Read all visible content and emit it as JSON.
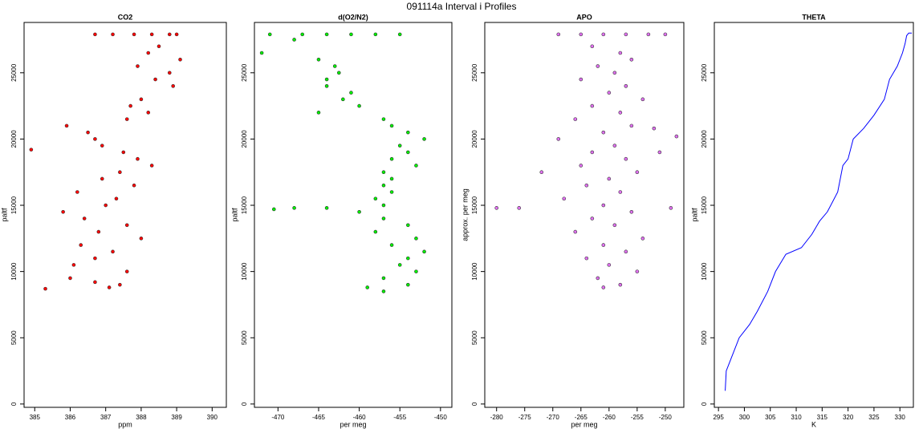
{
  "title": "091114a   Interval i Profiles",
  "chart_data": [
    {
      "type": "scatter",
      "title": "CO2",
      "xlabel": "ppm",
      "ylabel": "paltf",
      "color": "#ff0000",
      "x": [
        386.7,
        387.2,
        387.8,
        388.3,
        388.8,
        389.0,
        388.5,
        388.2,
        389.1,
        387.9,
        388.8,
        388.4,
        388.9,
        388.0,
        387.7,
        388.2,
        387.6,
        385.9,
        386.5,
        386.7,
        386.9,
        387.5,
        387.9,
        388.3,
        387.4,
        386.9,
        387.8,
        386.2,
        387.3,
        387.0,
        385.8,
        386.4,
        387.6,
        386.8,
        388.0,
        386.3,
        387.2,
        386.7,
        386.1,
        387.6,
        386.0,
        386.7,
        387.4,
        387.1,
        385.3,
        384.9
      ],
      "y": [
        27900,
        27900,
        27900,
        27900,
        27900,
        27900,
        27000,
        26500,
        26000,
        25500,
        25000,
        24500,
        24000,
        23000,
        22500,
        22000,
        21500,
        21000,
        20500,
        20000,
        19500,
        19000,
        18500,
        18000,
        17500,
        17000,
        16500,
        16000,
        15500,
        15000,
        14500,
        14000,
        13500,
        13000,
        12500,
        12000,
        11500,
        11000,
        10500,
        10000,
        9500,
        9200,
        9000,
        8800,
        8700,
        19200
      ],
      "xlim": [
        384.7,
        390.4
      ],
      "ylim": [
        -250,
        28800
      ],
      "xticks": [
        385,
        386,
        387,
        388,
        389,
        390
      ],
      "yticks": [
        0,
        5000,
        10000,
        15000,
        20000,
        25000
      ]
    },
    {
      "type": "scatter",
      "title": "d(O2/N2)",
      "xlabel": "per meg",
      "ylabel": "paltf",
      "color": "#00ee00",
      "x": [
        -471,
        -467,
        -464,
        -461,
        -458,
        -455,
        -468,
        -472,
        -465,
        -463,
        -462.5,
        -464,
        -464,
        -461,
        -462,
        -460,
        -465,
        -457,
        -456,
        -454,
        -452,
        -455,
        -454,
        -456,
        -453,
        -457,
        -456,
        -457,
        -456,
        -458,
        -457,
        -468,
        -470.5,
        -464,
        -460,
        -457,
        -454,
        -458,
        -453,
        -456,
        -452,
        -454,
        -455,
        -453,
        -457,
        -454,
        -457,
        -459
      ],
      "y": [
        27900,
        27900,
        27900,
        27900,
        27900,
        27900,
        27500,
        26500,
        26000,
        25500,
        25000,
        24500,
        24000,
        23500,
        23000,
        22500,
        22000,
        21500,
        21000,
        20500,
        20000,
        19500,
        19000,
        18500,
        18000,
        17500,
        17000,
        16500,
        16000,
        15500,
        15000,
        14800,
        14700,
        14800,
        14500,
        14000,
        13500,
        13000,
        12500,
        12000,
        11500,
        11000,
        10500,
        10000,
        9500,
        9000,
        8500,
        8800
      ],
      "xlim": [
        -472.9,
        -448.6
      ],
      "ylim": [
        -250,
        28800
      ],
      "xticks": [
        -470,
        -465,
        -460,
        -455,
        -450
      ],
      "yticks": [
        0,
        5000,
        10000,
        15000,
        20000,
        25000
      ]
    },
    {
      "type": "scatter",
      "title": "APO",
      "xlabel": "per meg",
      "ylabel": "approx. per meg",
      "color": "#e070f0",
      "x": [
        -269,
        -265,
        -261,
        -257,
        -253,
        -250,
        -263,
        -258,
        -256,
        -262,
        -259,
        -265,
        -257,
        -260,
        -254,
        -263,
        -258,
        -266,
        -256,
        -252,
        -261,
        -269,
        -259,
        -263,
        -257,
        -265,
        -255,
        -272,
        -260,
        -264,
        -258,
        -268,
        -261,
        -276,
        -280,
        -249,
        -256,
        -263,
        -259,
        -266,
        -254,
        -261,
        -257,
        -264,
        -260,
        -255,
        -262,
        -258,
        -261,
        -248,
        -251
      ],
      "y": [
        27900,
        27900,
        27900,
        27900,
        27900,
        27900,
        27000,
        26500,
        26000,
        25500,
        25000,
        24500,
        24000,
        23500,
        23000,
        22500,
        22000,
        21500,
        21000,
        20800,
        20500,
        20000,
        19500,
        19000,
        18500,
        18000,
        17500,
        17500,
        17000,
        16500,
        16000,
        15500,
        15000,
        14800,
        14800,
        14800,
        14500,
        14000,
        13500,
        13000,
        12500,
        12000,
        11500,
        11000,
        10500,
        10000,
        9500,
        9000,
        8800,
        20200,
        19000
      ],
      "xlim": [
        -282.1,
        -246.7
      ],
      "ylim": [
        -250,
        28800
      ],
      "xticks": [
        -280,
        -275,
        -270,
        -265,
        -260,
        -255,
        -250
      ],
      "yticks": [
        0,
        5000,
        10000,
        15000,
        20000,
        25000
      ]
    },
    {
      "type": "line",
      "title": "THETA",
      "xlabel": "K",
      "ylabel": "paltf",
      "color": "#0000ff",
      "x": [
        296.3,
        296.5,
        297.5,
        299,
        301,
        302.5,
        304.5,
        306,
        308,
        311,
        313,
        314.5,
        316,
        318,
        319,
        320,
        321,
        323,
        325,
        327,
        328,
        329.5,
        330.5,
        331,
        331.3,
        331.7,
        332.3
      ],
      "y": [
        1000,
        2500,
        3500,
        5000,
        6000,
        7000,
        8500,
        10000,
        11300,
        11800,
        12800,
        13800,
        14500,
        16000,
        18000,
        18500,
        20000,
        20800,
        21800,
        23000,
        24500,
        25500,
        26500,
        27200,
        27800,
        28000,
        28000
      ],
      "xlim": [
        294.2,
        332.6
      ],
      "ylim": [
        -250,
        28800
      ],
      "xticks": [
        295,
        300,
        305,
        310,
        315,
        320,
        325,
        330
      ],
      "yticks": [
        0,
        5000,
        10000,
        15000,
        20000,
        25000
      ]
    }
  ]
}
